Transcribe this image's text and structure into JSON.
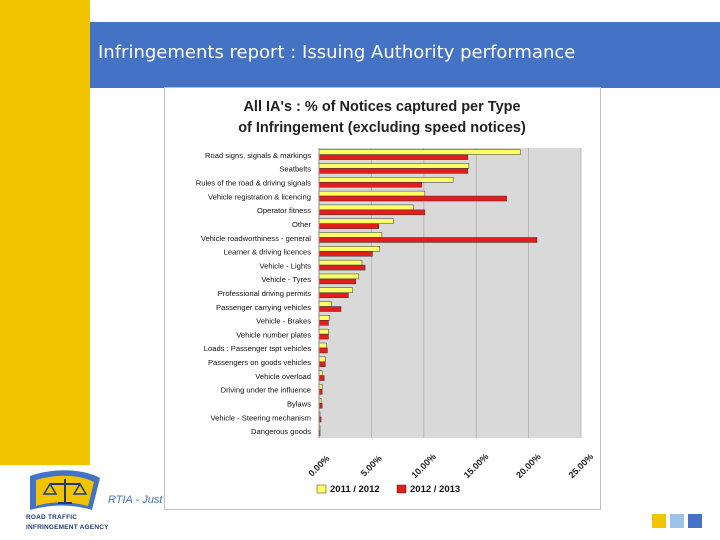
{
  "slide": {
    "title": "Infringements report :  Issuing Authority performance",
    "footer": "RTIA - Just",
    "logo_lines": [
      "ROAD TRAFFIC",
      "INFRINGEMENT AGENCY"
    ],
    "colors": {
      "title_band": "#4472c4",
      "accent": "#f2c400",
      "square1": "#f2c400",
      "square2": "#9dc3e6",
      "square3": "#4472c4"
    }
  },
  "chart_data": {
    "type": "bar",
    "orientation": "horizontal",
    "title": "All IA's : % of Notices captured per Type of Infringement (excluding speed notices)",
    "categories": [
      "Road signs, signals & markings",
      "Seatbelts",
      "Rules of the road & driving signals",
      "Vehicle registration & licencing",
      "Operator fitness",
      "Other",
      "Vehicle roadworthiness - general",
      "Learner & driving licences",
      "Vehicle - Lights",
      "Vehicle - Tyres",
      "Professional driving permits",
      "Passenger carrying vehicles",
      "Vehicle - Brakes",
      "Vehicle number plates",
      "Loads : Passenger tspt vehicles",
      "Passengers on goods vehicles",
      "Vehicle overload",
      "Driving under the influence",
      "Bylaws",
      "Vehicle - Steering mechanism",
      "Dangerous goods"
    ],
    "series": [
      {
        "name": "2011 / 2012",
        "color": "#ffff66",
        "values": [
          19.2,
          14.3,
          12.8,
          10.1,
          9.0,
          7.1,
          6.0,
          5.8,
          4.1,
          3.8,
          3.2,
          1.2,
          1.0,
          0.9,
          0.7,
          0.6,
          0.3,
          0.3,
          0.2,
          0.1,
          0.1
        ]
      },
      {
        "name": "2012 / 2013",
        "color": "#e31c1c",
        "values": [
          14.2,
          14.2,
          9.8,
          17.9,
          10.1,
          5.7,
          20.8,
          5.1,
          4.4,
          3.5,
          2.8,
          2.1,
          0.9,
          0.9,
          0.8,
          0.6,
          0.5,
          0.3,
          0.3,
          0.2,
          0.1
        ]
      }
    ],
    "xlim": [
      0,
      25
    ],
    "x_ticks": [
      "0.00%",
      "5.00%",
      "10.00%",
      "15.00%",
      "20.00%",
      "25.00%"
    ],
    "grid": true,
    "legend": "bottom"
  }
}
